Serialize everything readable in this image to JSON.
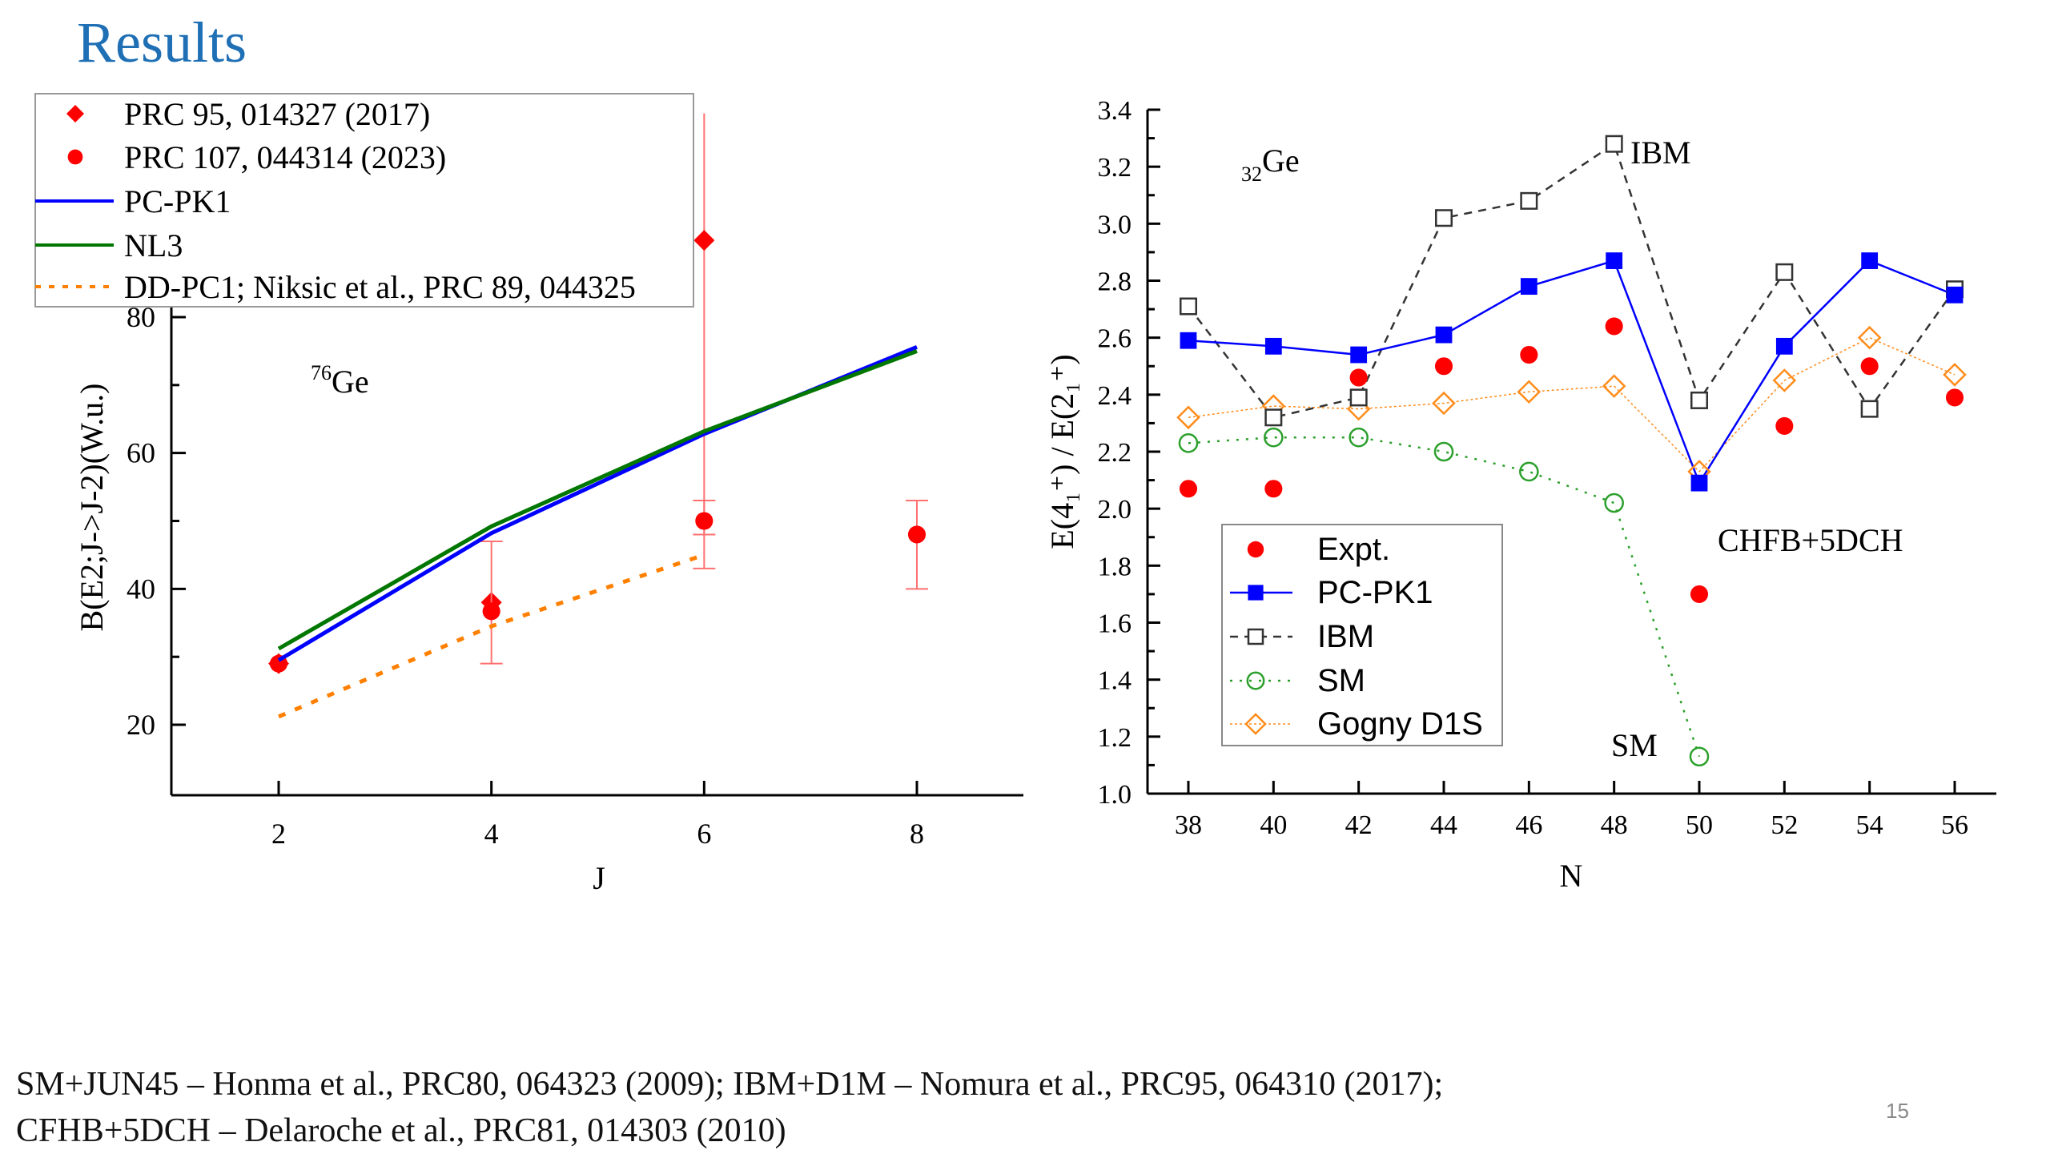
{
  "slide": {
    "title": "Results",
    "footer_line1": "SM+JUN45 – Honma et al., PRC80, 064323 (2009); IBM+D1M – Nomura et al., PRC95, 064310 (2017);",
    "footer_line2": "CFHB+5DCH – Delaroche et al., PRC81, 014303 (2010)",
    "page_number": "15"
  },
  "chart_data": [
    {
      "type": "line",
      "title": "",
      "annotation": "76Ge",
      "annotation_sup": "76",
      "annotation_main": "Ge",
      "xlabel": "J",
      "ylabel": "B(E2;J->J-2)(W.u.)",
      "xlim": [
        1,
        9
      ],
      "ylim": [
        9.7,
        80
      ],
      "xticks": [
        2,
        4,
        6,
        8
      ],
      "yticks": [
        20,
        40,
        60,
        80
      ],
      "legend_position": "top-left",
      "series": [
        {
          "name": "PRC 95, 014327 (2017)",
          "kind": "marker",
          "marker": "diamond",
          "color": "#ff0000",
          "x": [
            2,
            4,
            6
          ],
          "y": [
            29,
            38,
            91.3
          ],
          "err_low": [
            null,
            null,
            43
          ],
          "err_high": [
            null,
            null,
            110
          ]
        },
        {
          "name": "PRC 107, 044314 (2023)",
          "kind": "marker",
          "marker": "circle",
          "color": "#ff0000",
          "x": [
            2,
            4,
            6,
            8
          ],
          "y": [
            29,
            36.7,
            50,
            48
          ],
          "err_low": [
            null,
            29,
            48,
            40
          ],
          "err_high": [
            null,
            47,
            53,
            53
          ]
        },
        {
          "name": "PC-PK1",
          "kind": "line",
          "color": "#0000ff",
          "dash": "solid",
          "x": [
            2,
            4,
            6,
            8
          ],
          "y": [
            29.5,
            48.2,
            62.8,
            75.6
          ]
        },
        {
          "name": "NL3",
          "kind": "line",
          "color": "#007700",
          "dash": "solid",
          "x": [
            2,
            4,
            6,
            8
          ],
          "y": [
            31.2,
            49.2,
            63.2,
            75.0
          ]
        },
        {
          "name": "DD-PC1; Niksic et al., PRC 89, 044325",
          "kind": "line",
          "color": "#ff8000",
          "dash": "dotted",
          "x": [
            2,
            4,
            6
          ],
          "y": [
            21.2,
            34.5,
            45
          ]
        }
      ]
    },
    {
      "type": "line",
      "title": "",
      "annotation": "32Ge",
      "annotation_sub": "32",
      "annotation_main": "Ge",
      "xlabel": "N",
      "ylabel": "E(4₁⁺) / E(2₁⁺)",
      "xlim": [
        37,
        57
      ],
      "ylim": [
        1.0,
        3.4
      ],
      "xticks": [
        38,
        40,
        42,
        44,
        46,
        48,
        50,
        52,
        54,
        56
      ],
      "yticks": [
        1.0,
        1.2,
        1.4,
        1.6,
        1.8,
        2.0,
        2.2,
        2.4,
        2.6,
        2.8,
        3.0,
        3.2,
        3.4
      ],
      "text_labels": [
        "IBM",
        "CHFB+5DCH",
        "SM"
      ],
      "legend_position": "bottom-left",
      "series": [
        {
          "name": "Expt.",
          "marker": "filled-circle",
          "line": "none",
          "color": "#ff0000",
          "x": [
            38,
            40,
            42,
            44,
            46,
            48,
            50,
            52,
            54,
            56
          ],
          "y": [
            2.07,
            2.07,
            2.46,
            2.5,
            2.54,
            2.64,
            1.7,
            2.29,
            2.5,
            2.39
          ]
        },
        {
          "name": "PC-PK1",
          "marker": "filled-square",
          "line": "solid",
          "color": "#0000ff",
          "x": [
            38,
            40,
            42,
            44,
            46,
            48,
            50,
            52,
            54,
            56
          ],
          "y": [
            2.59,
            2.57,
            2.54,
            2.61,
            2.78,
            2.87,
            2.09,
            2.57,
            2.87,
            2.75
          ]
        },
        {
          "name": "IBM",
          "marker": "open-square",
          "line": "dashed",
          "color": "#333333",
          "x": [
            38,
            40,
            42,
            44,
            46,
            48,
            50,
            52,
            54,
            56
          ],
          "y": [
            2.71,
            2.32,
            2.39,
            3.02,
            3.08,
            3.28,
            2.38,
            2.83,
            2.35,
            2.77
          ]
        },
        {
          "name": "SM",
          "marker": "open-circle",
          "line": "dotted",
          "color": "#2ca02c",
          "x": [
            38,
            40,
            42,
            44,
            46,
            48,
            50
          ],
          "y": [
            2.23,
            2.25,
            2.25,
            2.2,
            2.13,
            2.02,
            1.13
          ]
        },
        {
          "name": "Gogny D1S",
          "marker": "open-diamond",
          "line": "dotted-thin",
          "color": "#ff8c1a",
          "x": [
            38,
            40,
            42,
            44,
            46,
            48,
            50,
            52,
            54,
            56
          ],
          "y": [
            2.32,
            2.36,
            2.35,
            2.37,
            2.41,
            2.43,
            2.13,
            2.45,
            2.6,
            2.47
          ]
        }
      ]
    }
  ]
}
